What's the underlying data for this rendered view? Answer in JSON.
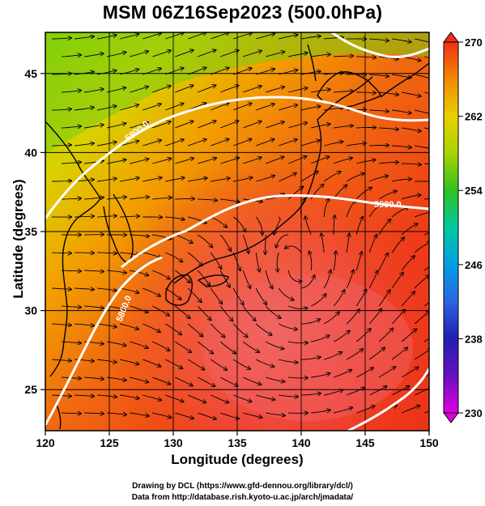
{
  "title": "MSM 06Z16Sep2023 (500.0hPa)",
  "xaxis": {
    "label": "Longitude (degrees)",
    "range": [
      120,
      150
    ],
    "ticks": [
      "120",
      "125",
      "130",
      "135",
      "140",
      "145",
      "150"
    ]
  },
  "yaxis": {
    "label": "Latitude  (degrees)",
    "range": [
      22.4,
      47.6
    ],
    "ticks": [
      "25",
      "30",
      "35",
      "40",
      "45"
    ]
  },
  "colorbar": {
    "range": [
      230,
      270
    ],
    "ticks": [
      "270",
      "262",
      "254",
      "246",
      "238",
      "230"
    ],
    "colors": [
      "#e000e0",
      "#2020b0",
      "#2a64e0",
      "#00b8e0",
      "#00c8a0",
      "#40c020",
      "#a8d400",
      "#e8d000",
      "#f09000",
      "#f04a10",
      "#f03018"
    ]
  },
  "contours": [
    {
      "label": "5800.0"
    },
    {
      "label": "5900.0"
    },
    {
      "label": "5800.0"
    },
    {
      "label": "5900.0"
    }
  ],
  "credit_line1": "Drawing by DCL (https://www.gfd-dennou.org/library/dcl/)",
  "credit_line2": "Data from http://database.rish.kyoto-u.ac.jp/arch/jmadata/"
}
